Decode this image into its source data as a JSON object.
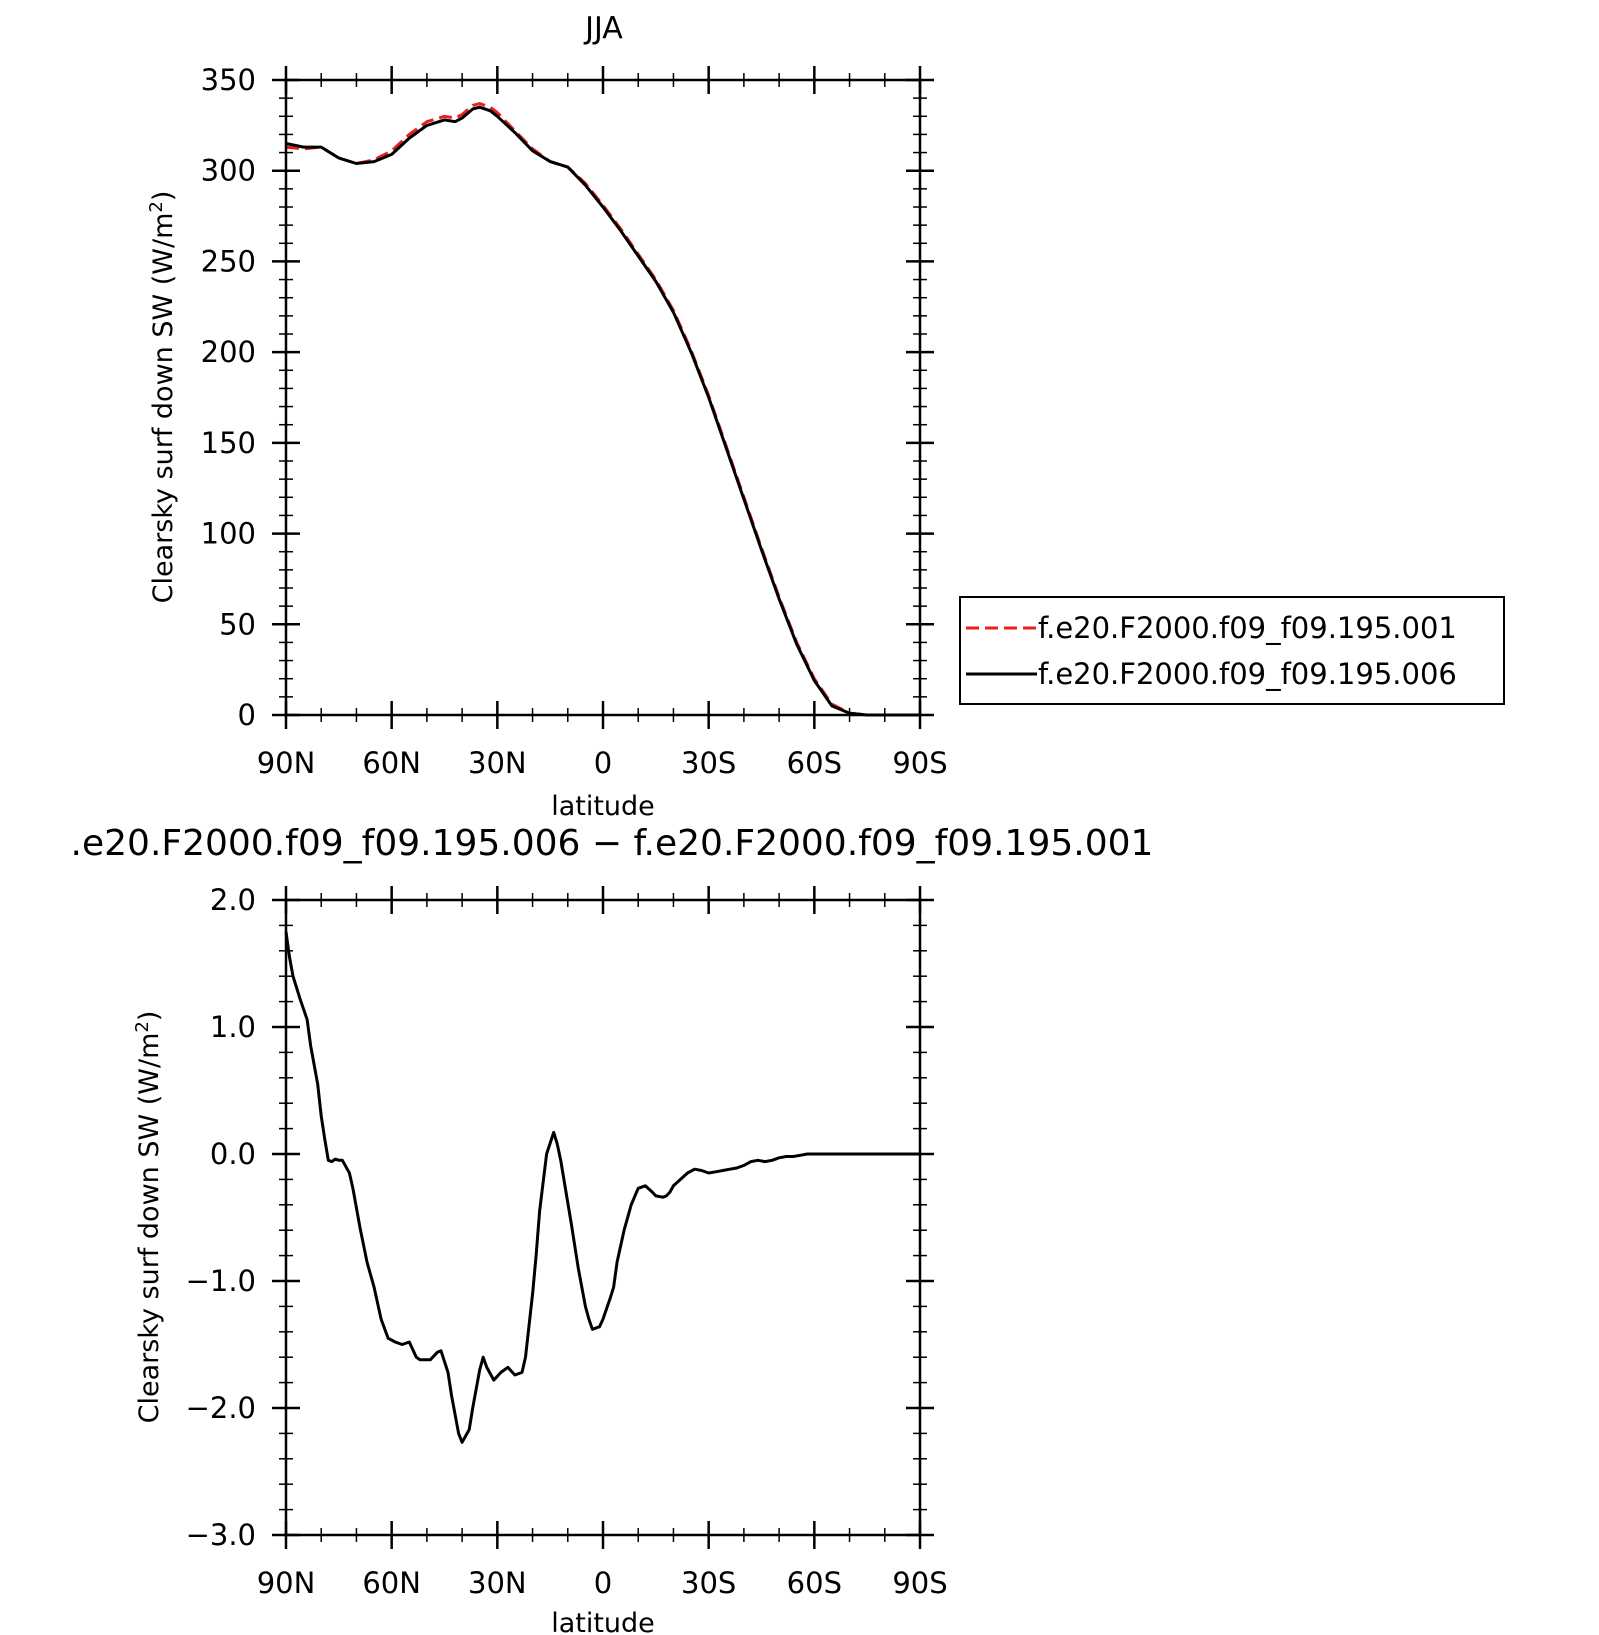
{
  "chart_data": [
    {
      "type": "line",
      "title": "JJA",
      "xlabel": "latitude",
      "ylabel": "Clearsky surf down SW (W/m",
      "ylabel_sup": "2",
      "ylabel_close": ")",
      "xlim": [
        90,
        -90
      ],
      "ylim": [
        0,
        350
      ],
      "x_ticks": [
        90,
        60,
        30,
        0,
        -30,
        -60,
        -90
      ],
      "x_tick_labels": [
        "90N",
        "60N",
        "30N",
        "0",
        "30S",
        "60S",
        "90S"
      ],
      "y_ticks": [
        0,
        50,
        100,
        150,
        200,
        250,
        300,
        350
      ],
      "y_tick_labels": [
        "0",
        "50",
        "100",
        "150",
        "200",
        "250",
        "300",
        "350"
      ],
      "legend_position": "right",
      "series": [
        {
          "name": "f.e20.F2000.f09_f09.195.001",
          "color": "#e8211d",
          "style": "dashed",
          "x": [
            90,
            85,
            80,
            75,
            70,
            65,
            60,
            55,
            50,
            45,
            42,
            40,
            37,
            35,
            32,
            30,
            25,
            20,
            15,
            10,
            5,
            0,
            -5,
            -10,
            -15,
            -20,
            -25,
            -30,
            -35,
            -40,
            -45,
            -50,
            -55,
            -60,
            -65,
            -70,
            -75,
            -80,
            -85,
            -90
          ],
          "y": [
            313,
            312,
            313,
            307,
            304,
            306,
            311,
            320,
            327,
            330,
            329,
            331,
            336,
            337,
            335,
            332,
            322,
            312,
            305,
            302,
            293,
            281,
            268,
            254,
            240,
            223,
            201,
            176,
            148,
            120,
            92,
            65,
            40,
            20,
            6,
            1,
            0,
            0,
            0,
            0
          ]
        },
        {
          "name": "f.e20.F2000.f09_f09.195.006",
          "color": "#000000",
          "style": "solid",
          "x": [
            90,
            85,
            80,
            75,
            70,
            65,
            60,
            55,
            50,
            45,
            42,
            40,
            37,
            35,
            32,
            30,
            25,
            20,
            15,
            10,
            5,
            0,
            -5,
            -10,
            -15,
            -20,
            -25,
            -30,
            -35,
            -40,
            -45,
            -50,
            -55,
            -60,
            -65,
            -70,
            -75,
            -80,
            -85,
            -90
          ],
          "y": [
            315,
            313,
            313,
            307,
            304,
            305,
            309,
            318,
            325,
            328,
            327,
            329,
            334,
            335,
            333,
            330,
            321,
            311,
            305,
            302,
            292,
            280,
            267,
            253,
            239,
            222,
            200,
            175,
            147,
            119,
            91,
            64,
            39,
            19,
            5,
            1,
            0,
            0,
            0,
            0
          ]
        }
      ]
    },
    {
      "type": "line",
      "title": ".e20.F2000.f09_f09.195.006 − f.e20.F2000.f09_f09.195.001",
      "xlabel": "latitude",
      "ylabel": "Clearsky surf down SW (W/m",
      "ylabel_sup": "2",
      "ylabel_close": ")",
      "xlim": [
        90,
        -90
      ],
      "ylim": [
        -3,
        2
      ],
      "x_ticks": [
        90,
        60,
        30,
        0,
        -30,
        -60,
        -90
      ],
      "x_tick_labels": [
        "90N",
        "60N",
        "30N",
        "0",
        "30S",
        "60S",
        "90S"
      ],
      "y_ticks": [
        2,
        1,
        0,
        -1,
        -2,
        -3
      ],
      "y_tick_labels": [
        "2.0",
        "1.0",
        "0.0",
        "−1.0",
        "−2.0",
        "−3.0"
      ],
      "series": [
        {
          "color": "#000000",
          "style": "solid",
          "x": [
            90,
            89,
            88,
            86,
            84,
            83,
            81,
            80,
            79,
            78,
            77,
            76,
            75,
            74,
            73,
            72,
            71,
            69,
            67,
            65,
            63,
            61,
            59,
            57,
            55,
            53,
            52,
            51,
            49,
            47,
            46,
            44,
            43,
            41,
            40,
            38,
            37,
            35,
            34,
            33,
            31,
            30,
            29,
            27,
            25,
            23,
            22,
            20,
            19,
            18,
            16,
            14,
            13,
            12,
            11,
            9,
            7,
            5,
            4,
            3,
            1,
            0,
            -1,
            -2,
            -3,
            -4,
            -6,
            -8,
            -10,
            -12,
            -14,
            -15,
            -17,
            -18,
            -19,
            -20,
            -22,
            -24,
            -26,
            -28,
            -30,
            -32,
            -34,
            -36,
            -38,
            -40,
            -42,
            -44,
            -46,
            -48,
            -50,
            -52,
            -54,
            -56,
            -58,
            -60,
            -62,
            -64,
            -66,
            -68,
            -70,
            -72,
            -75,
            -78,
            -80,
            -84,
            -90
          ],
          "y": [
            1.75,
            1.55,
            1.4,
            1.22,
            1.06,
            0.85,
            0.55,
            0.3,
            0.12,
            -0.05,
            -0.06,
            -0.04,
            -0.05,
            -0.05,
            -0.1,
            -0.15,
            -0.27,
            -0.58,
            -0.85,
            -1.05,
            -1.3,
            -1.45,
            -1.48,
            -1.5,
            -1.48,
            -1.6,
            -1.62,
            -1.62,
            -1.62,
            -1.56,
            -1.55,
            -1.72,
            -1.9,
            -2.2,
            -2.27,
            -2.17,
            -2.0,
            -1.7,
            -1.6,
            -1.68,
            -1.78,
            -1.75,
            -1.72,
            -1.68,
            -1.74,
            -1.72,
            -1.6,
            -1.1,
            -0.8,
            -0.45,
            0.0,
            0.17,
            0.08,
            -0.05,
            -0.22,
            -0.55,
            -0.9,
            -1.2,
            -1.3,
            -1.38,
            -1.36,
            -1.3,
            -1.22,
            -1.14,
            -1.05,
            -0.85,
            -0.6,
            -0.4,
            -0.27,
            -0.25,
            -0.3,
            -0.33,
            -0.34,
            -0.33,
            -0.3,
            -0.25,
            -0.2,
            -0.15,
            -0.12,
            -0.13,
            -0.15,
            -0.14,
            -0.13,
            -0.12,
            -0.11,
            -0.09,
            -0.06,
            -0.05,
            -0.06,
            -0.05,
            -0.03,
            -0.02,
            -0.02,
            -0.01,
            0.0,
            0.0,
            0.0,
            0.0,
            0.0,
            0.0,
            0.0,
            0.0,
            0.0,
            0.0,
            0.0,
            0.0,
            0.0
          ]
        }
      ]
    }
  ]
}
